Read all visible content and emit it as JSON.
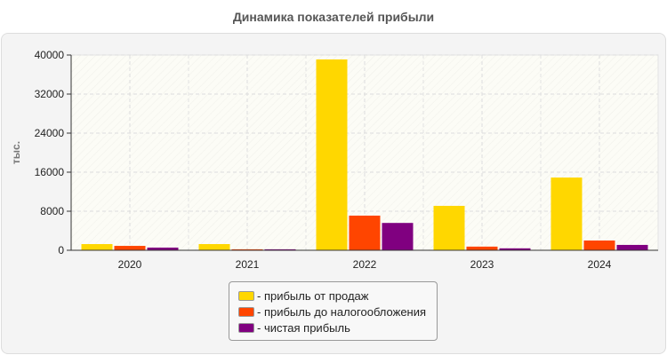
{
  "chart_data": {
    "type": "bar",
    "title": "Динамика показателей прибыли",
    "ylabel": "тыс.",
    "xlabel": "",
    "ylim": [
      0,
      40000
    ],
    "yticks": [
      0,
      8000,
      16000,
      24000,
      32000,
      40000
    ],
    "grid": true,
    "legend_position": "bottom",
    "categories": [
      "2020",
      "2021",
      "2022",
      "2023",
      "2024"
    ],
    "series": [
      {
        "name": "- прибыль от продаж",
        "color": "#FFD700",
        "values": [
          1270,
          1270,
          39100,
          9100,
          14900
        ]
      },
      {
        "name": "- прибыль до налогообложения",
        "color": "#FF4500",
        "values": [
          900,
          200,
          7100,
          750,
          2000
        ]
      },
      {
        "name": "- чистая прибыль",
        "color": "#800080",
        "values": [
          550,
          200,
          5600,
          400,
          1100
        ]
      }
    ]
  }
}
